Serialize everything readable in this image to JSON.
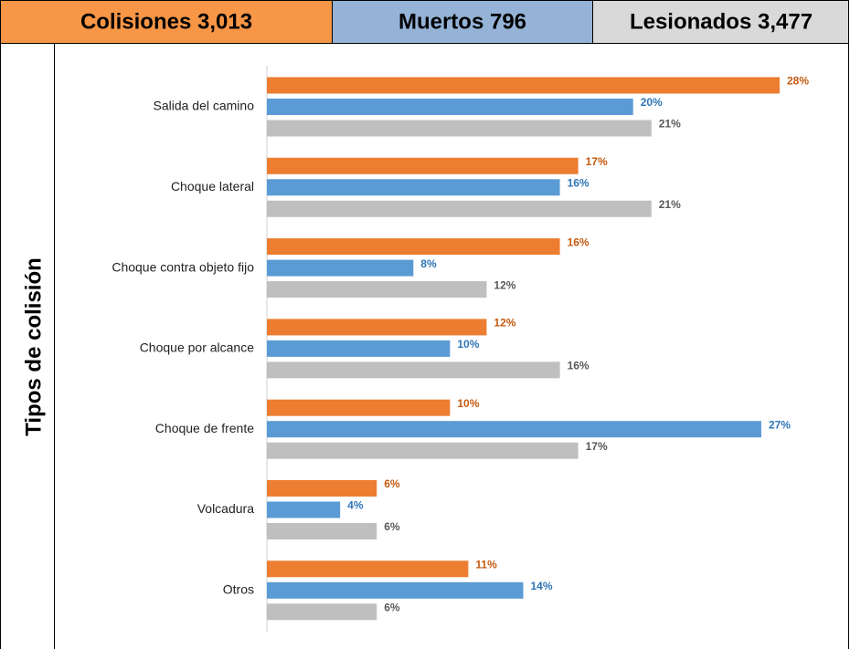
{
  "chart_data": {
    "type": "bar",
    "orientation": "horizontal",
    "y_label": "Tipos de colisión",
    "categories": [
      "Salida del camino",
      "Choque lateral",
      "Choque contra objeto fijo",
      "Choque por alcance",
      "Choque de frente",
      "Volcadura",
      "Otros"
    ],
    "series": [
      {
        "name": "Colisiones 3,013",
        "color": "#ed7d31",
        "values": [
          28,
          17,
          16,
          12,
          10,
          6,
          11
        ],
        "value_labels": [
          "28%",
          "17%",
          "16%",
          "12%",
          "10%",
          "6%",
          "11%"
        ]
      },
      {
        "name": "Muertos 796",
        "color": "#5b9bd5",
        "values": [
          20,
          16,
          8,
          10,
          27,
          4,
          14
        ],
        "value_labels": [
          "20%",
          "16%",
          "8%",
          "10%",
          "27%",
          "4%",
          "14%"
        ]
      },
      {
        "name": "Lesionados 3,477",
        "color": "#bfbfbf",
        "values": [
          21,
          21,
          12,
          16,
          17,
          6,
          6
        ],
        "value_labels": [
          "21%",
          "21%",
          "12%",
          "16%",
          "17%",
          "6%",
          "6%"
        ]
      }
    ]
  }
}
